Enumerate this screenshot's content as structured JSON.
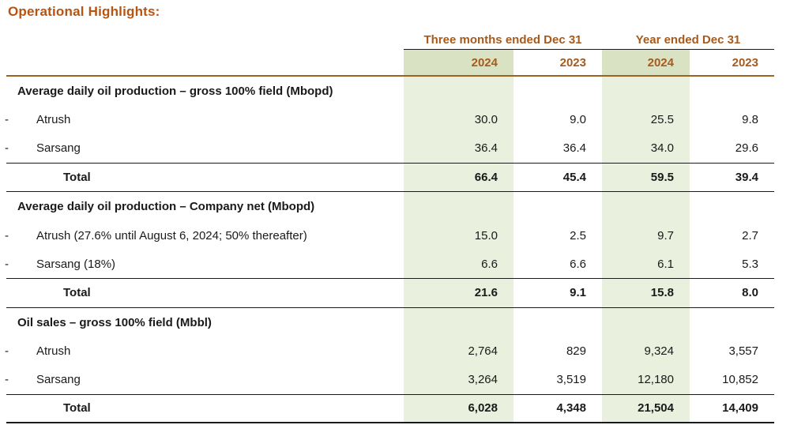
{
  "title": "Operational Highlights:",
  "colors": {
    "title_accent": "#b85310",
    "header_accent": "#a65a1c",
    "green_band_body": "#e9f0dd",
    "green_band_header": "#d9e3c3",
    "brown_rule": "#9e6120"
  },
  "table": {
    "col_groups": [
      {
        "label": "Three months ended Dec 31"
      },
      {
        "label": "Year ended Dec 31"
      }
    ],
    "year_cols": [
      "2024",
      "2023",
      "2024",
      "2023"
    ],
    "sections": [
      {
        "header": "Average daily oil production – gross 100% field (Mbopd)",
        "rows": [
          {
            "bullet": "-",
            "label": "Atrush",
            "values": [
              "30.0",
              "9.0",
              "25.5",
              "9.8"
            ]
          },
          {
            "bullet": "-",
            "label": "Sarsang",
            "values": [
              "36.4",
              "36.4",
              "34.0",
              "29.6"
            ]
          }
        ],
        "total": {
          "label": "Total",
          "values": [
            "66.4",
            "45.4",
            "59.5",
            "39.4"
          ]
        }
      },
      {
        "header": "Average daily oil production – Company net (Mbopd)",
        "rows": [
          {
            "bullet": "-",
            "label": "Atrush (27.6% until August 6, 2024; 50% thereafter)",
            "values": [
              "15.0",
              "2.5",
              "9.7",
              "2.7"
            ]
          },
          {
            "bullet": "-",
            "label": "Sarsang (18%)",
            "values": [
              "6.6",
              "6.6",
              "6.1",
              "5.3"
            ]
          }
        ],
        "total": {
          "label": "Total",
          "values": [
            "21.6",
            "9.1",
            "15.8",
            "8.0"
          ]
        }
      },
      {
        "header": "Oil sales – gross 100% field (Mbbl)",
        "rows": [
          {
            "bullet": "-",
            "label": "Atrush",
            "values": [
              "2,764",
              "829",
              "9,324",
              "3,557"
            ]
          },
          {
            "bullet": "-",
            "label": "Sarsang",
            "values": [
              "3,264",
              "3,519",
              "12,180",
              "10,852"
            ]
          }
        ],
        "total": {
          "label": "Total",
          "values": [
            "6,028",
            "4,348",
            "21,504",
            "14,409"
          ]
        }
      }
    ]
  }
}
